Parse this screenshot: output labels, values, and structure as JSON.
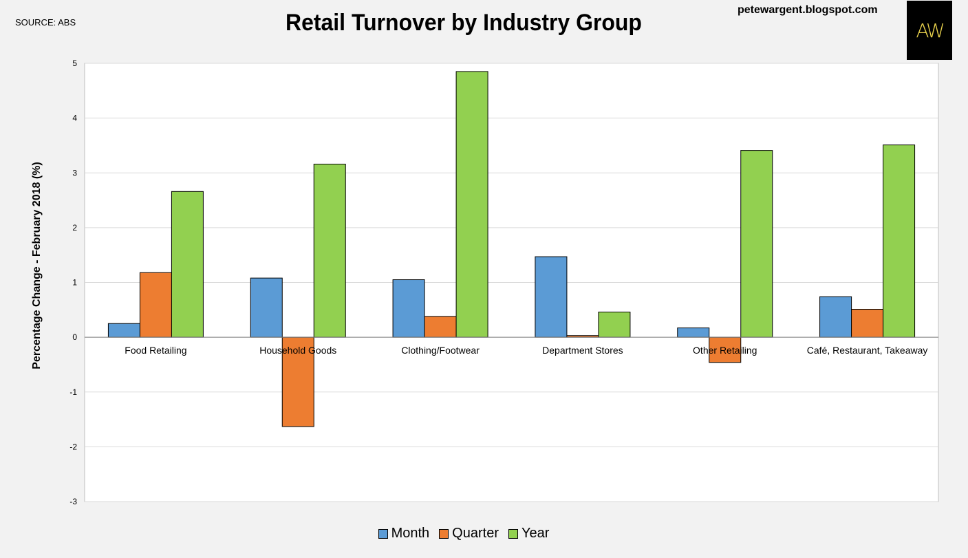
{
  "header": {
    "source": "SOURCE: ABS",
    "title": "Retail Turnover by Industry Group",
    "blog": "petewargent.blogspot.com",
    "logo_text": "AW"
  },
  "colors": {
    "month": "#5b9bd5",
    "quarter": "#ed7d31",
    "year": "#92d050",
    "logo_bg": "#000000",
    "logo_fg": "#e8d14c"
  },
  "chart_data": {
    "type": "bar",
    "title": "Retail Turnover by Industry Group",
    "ylabel": "Percentage Change - February 2018 (%)",
    "xlabel": "",
    "ylim": [
      -3,
      5
    ],
    "yticks": [
      5,
      4,
      3,
      2,
      1,
      0,
      -1,
      -2,
      -3
    ],
    "grid": true,
    "legend_position": "bottom",
    "categories": [
      "Food Retailing",
      "Household Goods",
      "Clothing/Footwear",
      "Department Stores",
      "Other Retailing",
      "Café, Restaurant, Takeaway"
    ],
    "series": [
      {
        "name": "Month",
        "color": "#5b9bd5",
        "values": [
          0.25,
          1.08,
          1.05,
          1.47,
          0.17,
          0.74
        ]
      },
      {
        "name": "Quarter",
        "color": "#ed7d31",
        "values": [
          1.18,
          -1.63,
          0.38,
          0.03,
          -0.46,
          0.51
        ]
      },
      {
        "name": "Year",
        "color": "#92d050",
        "values": [
          2.66,
          3.16,
          4.85,
          0.46,
          3.41,
          3.51
        ]
      }
    ]
  }
}
